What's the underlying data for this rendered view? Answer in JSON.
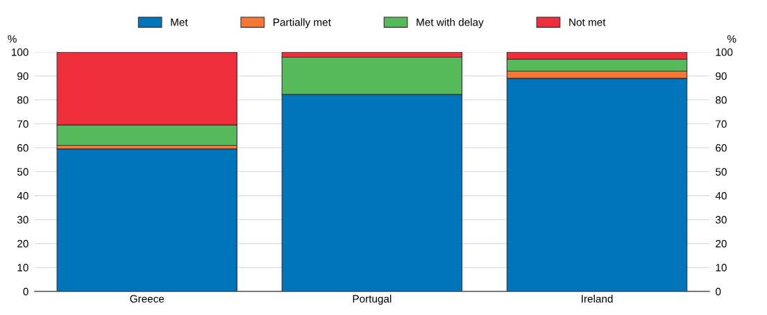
{
  "chart_data": {
    "type": "bar",
    "stacked": true,
    "categories": [
      "Greece",
      "Portugal",
      "Ireland"
    ],
    "series": [
      {
        "name": "Met",
        "color": "#0075bc",
        "values": [
          59.5,
          82.3,
          89
        ]
      },
      {
        "name": "Partially met",
        "color": "#f47735",
        "values": [
          1.5,
          0,
          3
        ]
      },
      {
        "name": "Met with delay",
        "color": "#56b95a",
        "values": [
          8.5,
          15.5,
          5
        ]
      },
      {
        "name": "Not met",
        "color": "#ee2e3b",
        "values": [
          30.5,
          2.2,
          3
        ]
      }
    ],
    "ylabel": "%",
    "y2label": "%",
    "ylim": [
      0,
      100
    ],
    "yticks": [
      0,
      10,
      20,
      30,
      40,
      50,
      60,
      70,
      80,
      90,
      100
    ],
    "y2lim": [
      0,
      100
    ],
    "y2ticks": [
      0,
      10,
      20,
      30,
      40,
      50,
      60,
      70,
      80,
      90,
      100
    ],
    "grid": "y",
    "legend": "top"
  }
}
